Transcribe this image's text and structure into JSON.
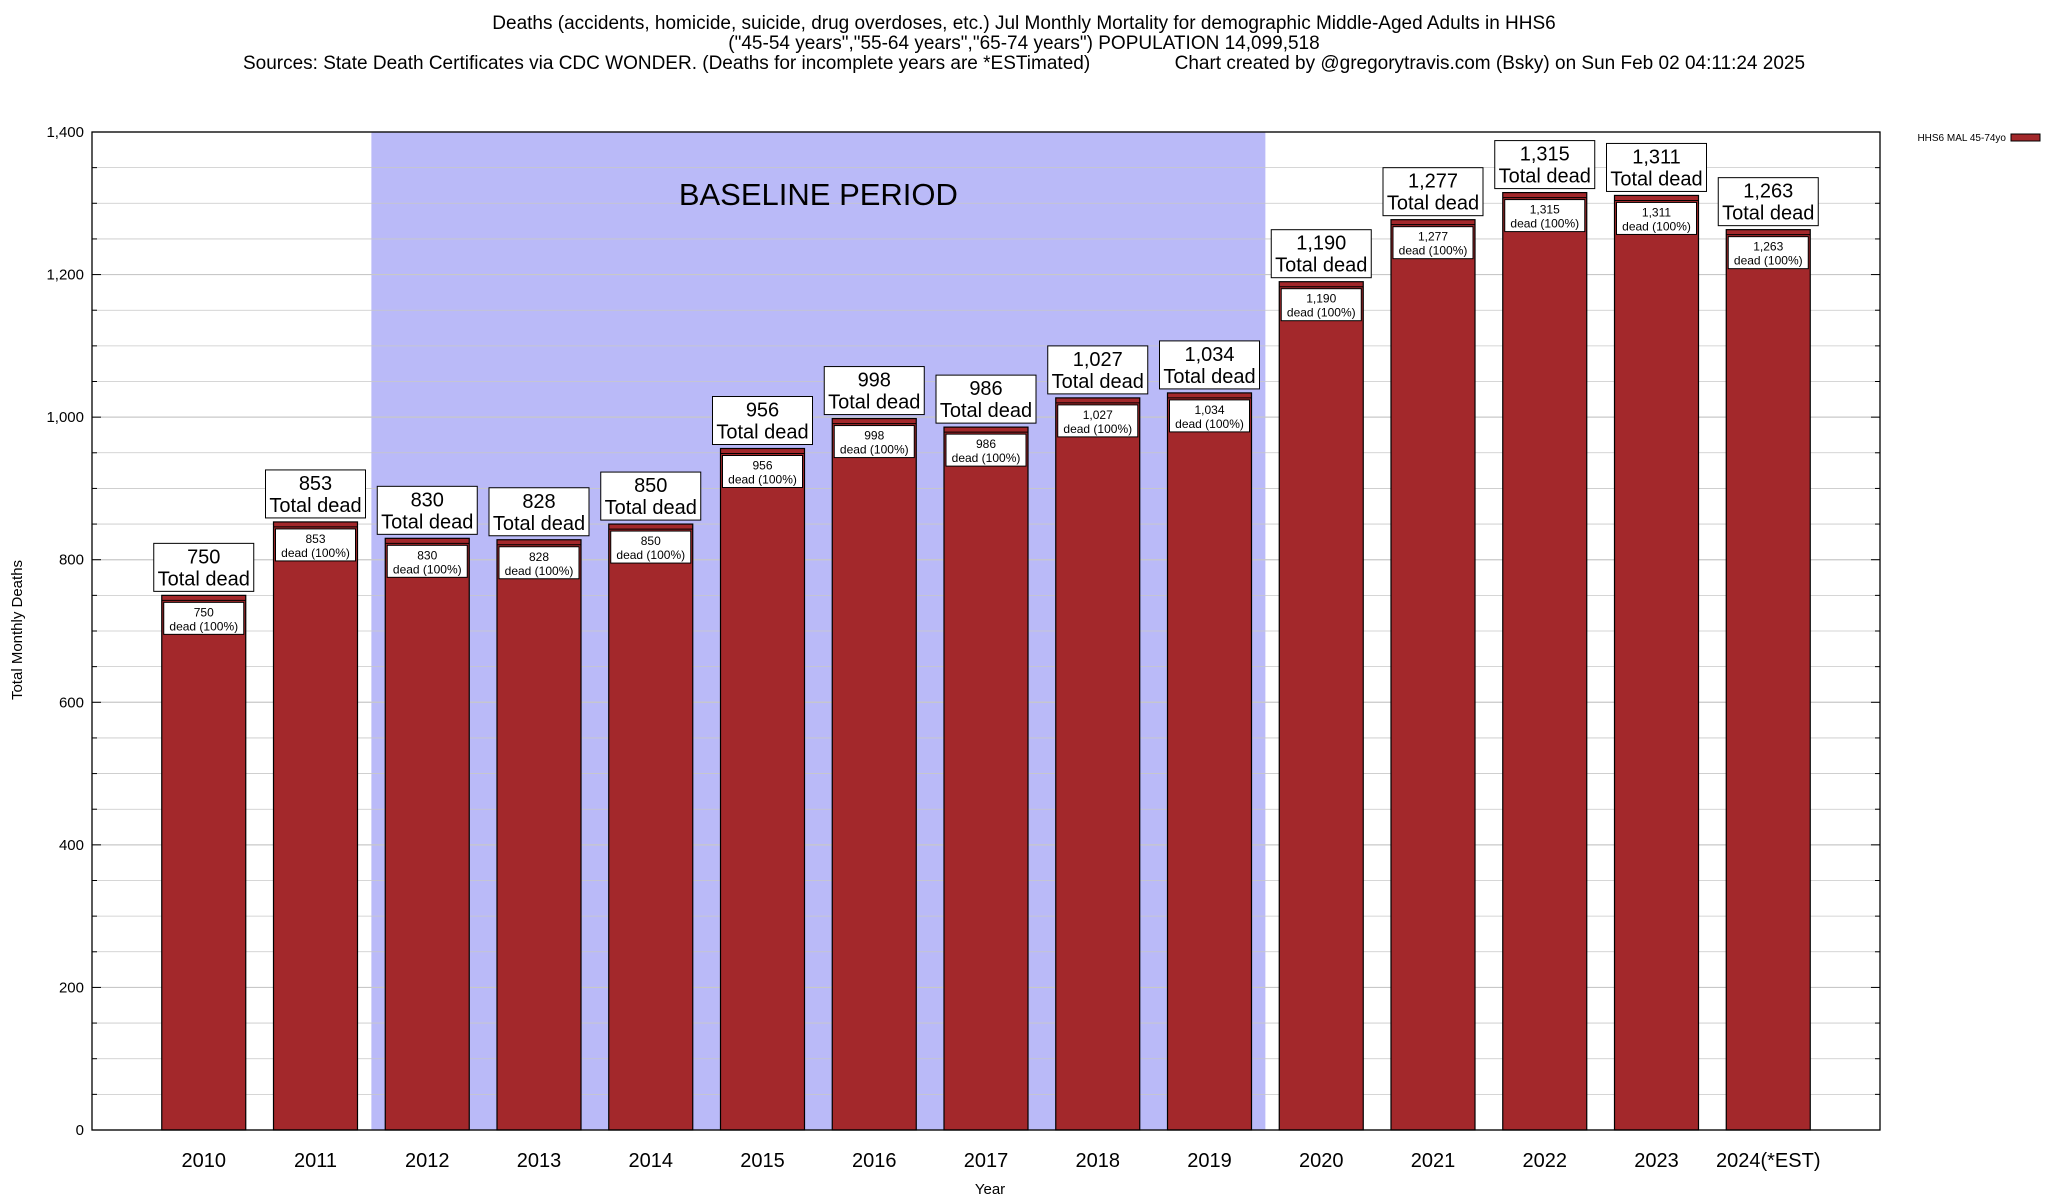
{
  "title_lines": [
    "Deaths (accidents, homicide, suicide, drug overdoses, etc.) Jul Monthly Mortality for demographic Middle-Aged Adults in HHS6",
    "(\"45-54 years\",\"55-64 years\",\"65-74 years\") POPULATION 14,099,518",
    "Sources: State Death Certificates via CDC WONDER. (Deaths for incomplete years are *ESTimated)                Chart created by @gregorytravis.com (Bsky) on Sun Feb 02 04:11:24 2025"
  ],
  "colors": {
    "bar": "#a3282b",
    "baseline_shade": "#babaf8",
    "grid": "#c8c8c8"
  },
  "chart_data": {
    "type": "bar",
    "categories": [
      "2010",
      "2011",
      "2012",
      "2013",
      "2014",
      "2015",
      "2016",
      "2017",
      "2018",
      "2019",
      "2020",
      "2021",
      "2022",
      "2023",
      "2024(*EST)"
    ],
    "series": [
      {
        "name": "HHS6 MAL 45-74yo",
        "values": [
          750,
          853,
          830,
          828,
          850,
          956,
          998,
          986,
          1027,
          1034,
          1190,
          1277,
          1315,
          1311,
          1263
        ]
      }
    ],
    "value_labels": [
      "750",
      "853",
      "830",
      "828",
      "850",
      "956",
      "998",
      "986",
      "1,027",
      "1,034",
      "1,190",
      "1,277",
      "1,315",
      "1,311",
      "1,263"
    ],
    "total_label": "Total dead",
    "inner_label": "dead (100%)",
    "baseline_period": {
      "label": "BASELINE PERIOD",
      "start": "2012",
      "end": "2019"
    },
    "xlabel": "Year",
    "ylabel": "Total Monthly Deaths",
    "ylim": [
      0,
      1400
    ],
    "yticks": [
      0,
      200,
      400,
      600,
      800,
      1000,
      1200,
      1400
    ],
    "ytick_labels": [
      "0",
      "200",
      "400",
      "600",
      "800",
      "1,000",
      "1,200",
      "1,400"
    ],
    "grid": true,
    "legend_position": "top-right"
  }
}
